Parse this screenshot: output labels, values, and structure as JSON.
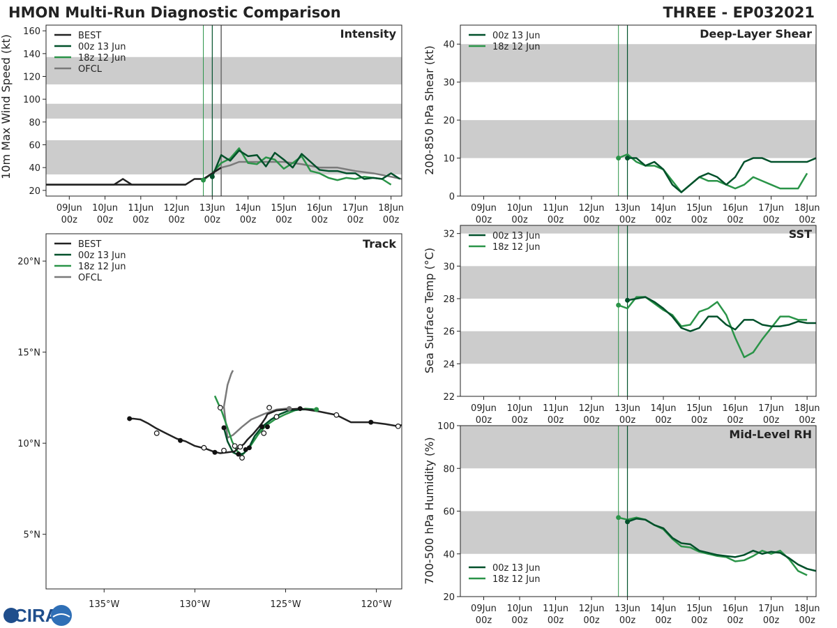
{
  "header": {
    "title": "HMON Multi-Run Diagnostic Comparison",
    "storm": "THREE - EP032021"
  },
  "logo": {
    "text": "CIRA"
  },
  "colors": {
    "best": "#222222",
    "run_00z": "#00502a",
    "run_18z": "#2a9448",
    "ofcl": "#7a7a7a",
    "band": "#cccccc"
  },
  "time_axis": {
    "ticks": [
      {
        "t": 1,
        "day": "09Jun",
        "hour": "00z"
      },
      {
        "t": 2,
        "day": "10Jun",
        "hour": "00z"
      },
      {
        "t": 3,
        "day": "11Jun",
        "hour": "00z"
      },
      {
        "t": 4,
        "day": "12Jun",
        "hour": "00z"
      },
      {
        "t": 5,
        "day": "13Jun",
        "hour": "00z"
      },
      {
        "t": 6,
        "day": "14Jun",
        "hour": "00z"
      },
      {
        "t": 7,
        "day": "15Jun",
        "hour": "00z"
      },
      {
        "t": 8,
        "day": "16Jun",
        "hour": "00z"
      },
      {
        "t": 9,
        "day": "17Jun",
        "hour": "00z"
      },
      {
        "t": 10,
        "day": "18Jun",
        "hour": "00z"
      }
    ],
    "init_18z": 4.75,
    "init_00z": 5.0,
    "ofcl_init": 5.25
  },
  "chart_data": [
    {
      "id": "intensity",
      "type": "line",
      "title": "Intensity",
      "ylabel": "10m Max Wind Speed (kt)",
      "xlim": [
        0.35,
        10.3
      ],
      "ylim": [
        15,
        165
      ],
      "yticks": [
        20,
        40,
        60,
        80,
        100,
        120,
        140,
        160
      ],
      "bands": [
        [
          34,
          64
        ],
        [
          83,
          96
        ],
        [
          113,
          137
        ]
      ],
      "legend": [
        "BEST",
        "00z 13 Jun",
        "18z 12 Jun",
        "OFCL"
      ],
      "series": [
        {
          "name": "BEST",
          "key": "best",
          "x": [
            0.35,
            4.25,
            4.5,
            4.75,
            5.0,
            5.25
          ],
          "y": [
            25,
            25,
            30,
            30,
            35,
            40
          ],
          "extra_x": [
            0.35,
            2.25,
            2.5,
            2.75,
            4.25
          ],
          "extra_y": [
            25,
            25,
            30,
            25,
            25
          ]
        },
        {
          "name": "00z 13 Jun",
          "key": "run_00z",
          "x": [
            5.0,
            5.25,
            5.5,
            5.75,
            6.0,
            6.25,
            6.5,
            6.75,
            7.0,
            7.25,
            7.5,
            7.75,
            8.0,
            8.25,
            8.5,
            8.75,
            9.0,
            9.25,
            9.5,
            9.75,
            10.0,
            10.25
          ],
          "y": [
            32,
            51,
            46,
            55,
            50,
            51,
            41,
            53,
            47,
            40,
            52,
            45,
            38,
            37,
            37,
            35,
            35,
            30,
            31,
            30,
            35,
            30
          ]
        },
        {
          "name": "18z 12 Jun",
          "key": "run_18z",
          "x": [
            4.75,
            5.0,
            5.25,
            5.5,
            5.75,
            6.0,
            6.25,
            6.5,
            6.75,
            7.0,
            7.25,
            7.5,
            7.75,
            8.0,
            8.25,
            8.5,
            8.75,
            9.0,
            9.25,
            9.5,
            9.75,
            10.0
          ],
          "y": [
            29,
            35,
            44,
            48,
            57,
            44,
            43,
            49,
            47,
            39,
            44,
            50,
            37,
            35,
            31,
            29,
            31,
            30,
            32,
            31,
            30,
            25
          ]
        },
        {
          "name": "OFCL",
          "key": "ofcl",
          "x": [
            5.0,
            5.25,
            5.5,
            5.75,
            6.0,
            6.5,
            7.0,
            7.5,
            8.0,
            8.5,
            9.0,
            9.5,
            10.0,
            10.3
          ],
          "y": [
            35,
            40,
            42,
            45,
            45,
            45,
            45,
            43,
            40,
            40,
            37,
            35,
            32,
            30
          ]
        }
      ],
      "markers": [
        {
          "key": "run_18z",
          "x": 4.75,
          "y": 29
        },
        {
          "key": "run_00z",
          "x": 5.0,
          "y": 32
        }
      ]
    },
    {
      "id": "shear",
      "type": "line",
      "title": "Deep-Layer Shear",
      "ylabel": "200-850 hPa Shear (kt)",
      "xlim": [
        0.35,
        10.25
      ],
      "ylim": [
        0,
        45
      ],
      "yticks": [
        0,
        10,
        20,
        30,
        40
      ],
      "bands": [
        [
          10,
          20
        ],
        [
          30,
          40
        ]
      ],
      "legend": [
        "00z 13 Jun",
        "18z 12 Jun"
      ],
      "series": [
        {
          "name": "00z 13 Jun",
          "key": "run_00z",
          "x": [
            5.0,
            5.25,
            5.5,
            5.75,
            6.0,
            6.25,
            6.5,
            6.75,
            7.0,
            7.25,
            7.5,
            7.75,
            8.0,
            8.25,
            8.5,
            8.75,
            9.0,
            9.25,
            9.5,
            9.75,
            10.0,
            10.25
          ],
          "y": [
            10,
            10,
            8,
            9,
            7,
            3,
            1,
            3,
            5,
            6,
            5,
            3,
            5,
            9,
            10,
            10,
            9,
            9,
            9,
            9,
            9,
            10
          ]
        },
        {
          "name": "18z 12 Jun",
          "key": "run_18z",
          "x": [
            4.75,
            5.0,
            5.25,
            5.5,
            5.75,
            6.0,
            6.25,
            6.5,
            6.75,
            7.0,
            7.25,
            7.5,
            7.75,
            8.0,
            8.25,
            8.5,
            8.75,
            9.0,
            9.25,
            9.5,
            9.75,
            10.0
          ],
          "y": [
            10,
            11,
            9,
            8,
            8,
            7,
            4,
            1,
            3,
            5,
            4,
            4,
            3,
            2,
            3,
            5,
            4,
            3,
            2,
            2,
            2,
            6
          ]
        }
      ],
      "markers": [
        {
          "key": "run_18z",
          "x": 4.75,
          "y": 10
        },
        {
          "key": "run_00z",
          "x": 5.0,
          "y": 10
        }
      ]
    },
    {
      "id": "sst",
      "type": "line",
      "title": "SST",
      "ylabel": "Sea Surface Temp (°C)",
      "xlim": [
        0.35,
        10.25
      ],
      "ylim": [
        22,
        32.5
      ],
      "yticks": [
        22,
        24,
        26,
        28,
        30,
        32
      ],
      "bands": [
        [
          24,
          26
        ],
        [
          28,
          30
        ],
        [
          32,
          32.5
        ]
      ],
      "legend": [
        "00z 13 Jun",
        "18z 12 Jun"
      ],
      "series": [
        {
          "name": "00z 13 Jun",
          "key": "run_00z",
          "x": [
            5.0,
            5.25,
            5.5,
            5.75,
            6.0,
            6.25,
            6.5,
            6.75,
            7.0,
            7.25,
            7.5,
            7.75,
            8.0,
            8.25,
            8.5,
            8.75,
            9.0,
            9.25,
            9.5,
            9.75,
            10.0,
            10.25
          ],
          "y": [
            27.9,
            28.0,
            28.1,
            27.8,
            27.4,
            26.9,
            26.2,
            26.0,
            26.2,
            26.9,
            26.9,
            26.4,
            26.1,
            26.7,
            26.7,
            26.4,
            26.3,
            26.3,
            26.4,
            26.6,
            26.5,
            26.5
          ]
        },
        {
          "name": "18z 12 Jun",
          "key": "run_18z",
          "x": [
            4.75,
            5.0,
            5.25,
            5.5,
            5.75,
            6.0,
            6.25,
            6.5,
            6.75,
            7.0,
            7.25,
            7.5,
            7.75,
            8.0,
            8.25,
            8.5,
            8.75,
            9.0,
            9.25,
            9.5,
            9.75,
            10.0
          ],
          "y": [
            27.6,
            27.4,
            28.1,
            28.1,
            27.7,
            27.3,
            27.0,
            26.3,
            26.4,
            27.2,
            27.4,
            27.8,
            27.0,
            25.6,
            24.4,
            24.7,
            25.5,
            26.2,
            26.9,
            26.9,
            26.7,
            26.7
          ]
        }
      ],
      "markers": [
        {
          "key": "run_18z",
          "x": 4.75,
          "y": 27.6
        },
        {
          "key": "run_00z",
          "x": 5.0,
          "y": 27.9
        }
      ]
    },
    {
      "id": "rh",
      "type": "line",
      "title": "Mid-Level RH",
      "ylabel": "700-500 hPa Humidity (%)",
      "xlim": [
        0.35,
        10.25
      ],
      "ylim": [
        20,
        100
      ],
      "yticks": [
        20,
        40,
        60,
        80,
        100
      ],
      "bands": [
        [
          40,
          60
        ],
        [
          80,
          100
        ]
      ],
      "legend": [
        "00z 13 Jun",
        "18z 12 Jun"
      ],
      "series": [
        {
          "name": "00z 13 Jun",
          "key": "run_00z",
          "x": [
            5.0,
            5.25,
            5.5,
            5.75,
            6.0,
            6.25,
            6.5,
            6.75,
            7.0,
            7.25,
            7.5,
            7.75,
            8.0,
            8.25,
            8.5,
            8.75,
            9.0,
            9.25,
            9.5,
            9.75,
            10.0,
            10.25
          ],
          "y": [
            55,
            56.5,
            56,
            53.5,
            52,
            47.5,
            45,
            44.5,
            41.5,
            40.5,
            39.5,
            39,
            38.5,
            39.5,
            41.5,
            40,
            41,
            40.5,
            38,
            35,
            33,
            32
          ]
        },
        {
          "name": "18z 12 Jun",
          "key": "run_18z",
          "x": [
            4.75,
            5.0,
            5.25,
            5.5,
            5.75,
            6.0,
            6.25,
            6.5,
            6.75,
            7.0,
            7.25,
            7.5,
            7.75,
            8.0,
            8.25,
            8.5,
            8.75,
            9.0,
            9.25,
            9.5,
            9.75,
            10.0
          ],
          "y": [
            57,
            56,
            57,
            56,
            53.5,
            51.5,
            47,
            43.5,
            43,
            41,
            40,
            39,
            38.5,
            36.5,
            37,
            39,
            41.5,
            40,
            41.5,
            37.5,
            32,
            30
          ]
        }
      ],
      "markers": [
        {
          "key": "run_18z",
          "x": 4.75,
          "y": 57
        },
        {
          "key": "run_00z",
          "x": 5.0,
          "y": 55
        }
      ]
    },
    {
      "id": "track",
      "type": "line",
      "title": "Track",
      "xlim": [
        -138.2,
        -118.6
      ],
      "ylim": [
        2.0,
        21.5
      ],
      "xticks": [
        {
          "v": -135,
          "label": "135°W"
        },
        {
          "v": -130,
          "label": "130°W"
        },
        {
          "v": -125,
          "label": "125°W"
        },
        {
          "v": -120,
          "label": "120°W"
        }
      ],
      "yticks": [
        {
          "v": 5,
          "label": "5°N"
        },
        {
          "v": 10,
          "label": "10°N"
        },
        {
          "v": 15,
          "label": "15°N"
        },
        {
          "v": 20,
          "label": "20°N"
        }
      ],
      "legend": [
        "BEST",
        "00z 13 Jun",
        "18z 12 Jun",
        "OFCL"
      ],
      "series": [
        {
          "name": "BEST",
          "key": "best",
          "lon": [
            -118.6,
            -118.8,
            -119.5,
            -120.3,
            -121.4,
            -122.2,
            -123.2,
            -124.2,
            -125.0,
            -125.5,
            -126.0,
            -126.1,
            -126.3,
            -126.5,
            -126.8,
            -127.1,
            -127.3,
            -127.6,
            -127.8,
            -128.2,
            -128.6,
            -129.0,
            -129.4,
            -130.0,
            -130.5,
            -131.0,
            -131.6,
            -132.1,
            -132.6,
            -133.0,
            -133.4,
            -133.6
          ],
          "lat": [
            11.0,
            10.93,
            11.05,
            11.15,
            11.15,
            11.55,
            11.75,
            11.9,
            11.85,
            11.8,
            11.6,
            11.4,
            11.1,
            10.85,
            10.5,
            10.2,
            9.95,
            9.75,
            9.55,
            9.5,
            9.45,
            9.55,
            9.7,
            9.85,
            10.1,
            10.25,
            10.55,
            10.8,
            11.1,
            11.3,
            11.35,
            11.35
          ],
          "closed": [
            [
              -118.8,
              10.93
            ],
            [
              -122.2,
              11.55
            ],
            [
              -125.5,
              11.45
            ],
            [
              -125.9,
              11.95
            ],
            [
              -126.2,
              10.55
            ],
            [
              -127.5,
              9.8
            ],
            [
              -127.4,
              9.2
            ],
            [
              -127.8,
              9.85
            ],
            [
              -128.4,
              9.6
            ],
            [
              -128.6,
              11.95
            ],
            [
              -129.5,
              9.75
            ],
            [
              -132.1,
              10.55
            ]
          ],
          "filled": [
            [
              -120.3,
              11.15
            ],
            [
              -124.2,
              11.9
            ],
            [
              -124.8,
              11.9
            ],
            [
              -126.0,
              10.9
            ],
            [
              -126.3,
              10.9
            ],
            [
              -127.0,
              9.75
            ],
            [
              -127.2,
              9.65
            ],
            [
              -127.6,
              9.4
            ],
            [
              -128.4,
              10.85
            ],
            [
              -128.9,
              9.5
            ],
            [
              -130.8,
              10.15
            ],
            [
              -133.6,
              11.35
            ]
          ]
        },
        {
          "name": "00z 13 Jun",
          "key": "run_00z",
          "lon": [
            -123.5,
            -124.2,
            -124.8,
            -125.3,
            -125.8,
            -126.3,
            -126.7,
            -127.0,
            -127.3,
            -127.6,
            -127.9,
            -128.2,
            -128.4
          ],
          "lat": [
            11.85,
            11.85,
            11.8,
            11.6,
            11.3,
            10.9,
            10.4,
            9.8,
            9.45,
            9.35,
            9.5,
            10.1,
            10.85
          ]
        },
        {
          "name": "18z 12 Jun",
          "key": "run_18z",
          "lon": [
            -123.3,
            -123.9,
            -124.5,
            -125.1,
            -125.6,
            -126.1,
            -126.5,
            -126.9,
            -127.2,
            -127.4,
            -127.7,
            -127.95,
            -128.2,
            -128.5,
            -128.9
          ],
          "lat": [
            11.85,
            11.9,
            11.8,
            11.55,
            11.3,
            10.95,
            10.5,
            9.9,
            9.55,
            9.35,
            9.6,
            10.1,
            10.85,
            11.7,
            12.6
          ]
        },
        {
          "name": "OFCL",
          "key": "ofcl",
          "lon": [
            -124.8,
            -125.0,
            -125.5,
            -126.2,
            -126.9,
            -127.4,
            -127.9,
            -128.2,
            -128.4,
            -128.2,
            -128.0,
            -127.9
          ],
          "lat": [
            11.9,
            11.9,
            11.85,
            11.6,
            11.3,
            10.9,
            10.45,
            10.3,
            12.0,
            13.2,
            13.8,
            14.0
          ]
        }
      ]
    }
  ]
}
